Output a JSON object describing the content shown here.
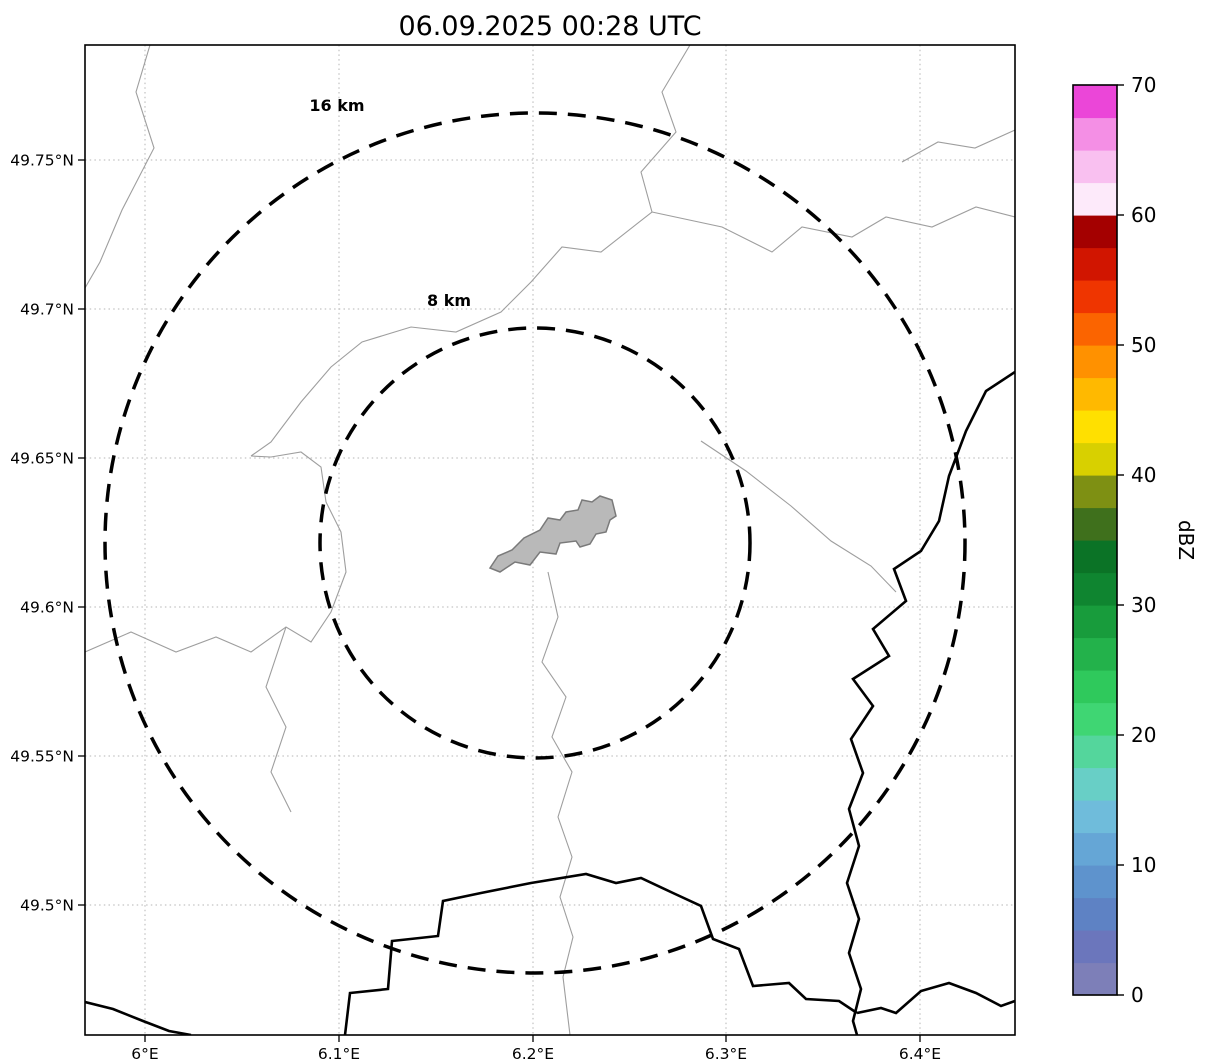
{
  "title": "06.09.2025 00:28 UTC",
  "map": {
    "range_rings": [
      {
        "label": "16 km"
      },
      {
        "label": "8 km"
      }
    ],
    "x_axis": {
      "tick_labels": [
        "6°E",
        "6.1°E",
        "6.2°E",
        "6.3°E",
        "6.4°E"
      ]
    },
    "y_axis": {
      "tick_labels": [
        "49.75°N",
        "49.7°N",
        "49.65°N",
        "49.6°N",
        "49.55°N",
        "49.5°N"
      ]
    },
    "features": {
      "airport_polygon": "airport-outline",
      "thin_lines": "municipal-boundary-lines",
      "thick_lines": "country-border-river-lines"
    }
  },
  "colorbar": {
    "label": "dBZ",
    "tick_labels": [
      "0",
      "10",
      "20",
      "30",
      "40",
      "50",
      "60",
      "70"
    ],
    "value_range": [
      0,
      70
    ],
    "segment_colors_bottom_to_top": [
      "#7d7fb8",
      "#6b76bc",
      "#5e82c4",
      "#5e93cd",
      "#65a6d6",
      "#6fbcdb",
      "#68cfc6",
      "#54d69c",
      "#3fd673",
      "#2fc95c",
      "#23b24b",
      "#189c3c",
      "#0f8530",
      "#0b7326",
      "#3f701c",
      "#7e9013",
      "#d8d000",
      "#ffe000",
      "#ffb900",
      "#ff9100",
      "#fb6400",
      "#ef3500",
      "#d11500",
      "#a40000",
      "#fdeafa",
      "#f9c0f0",
      "#f48fe5",
      "#eb46d8"
    ]
  }
}
